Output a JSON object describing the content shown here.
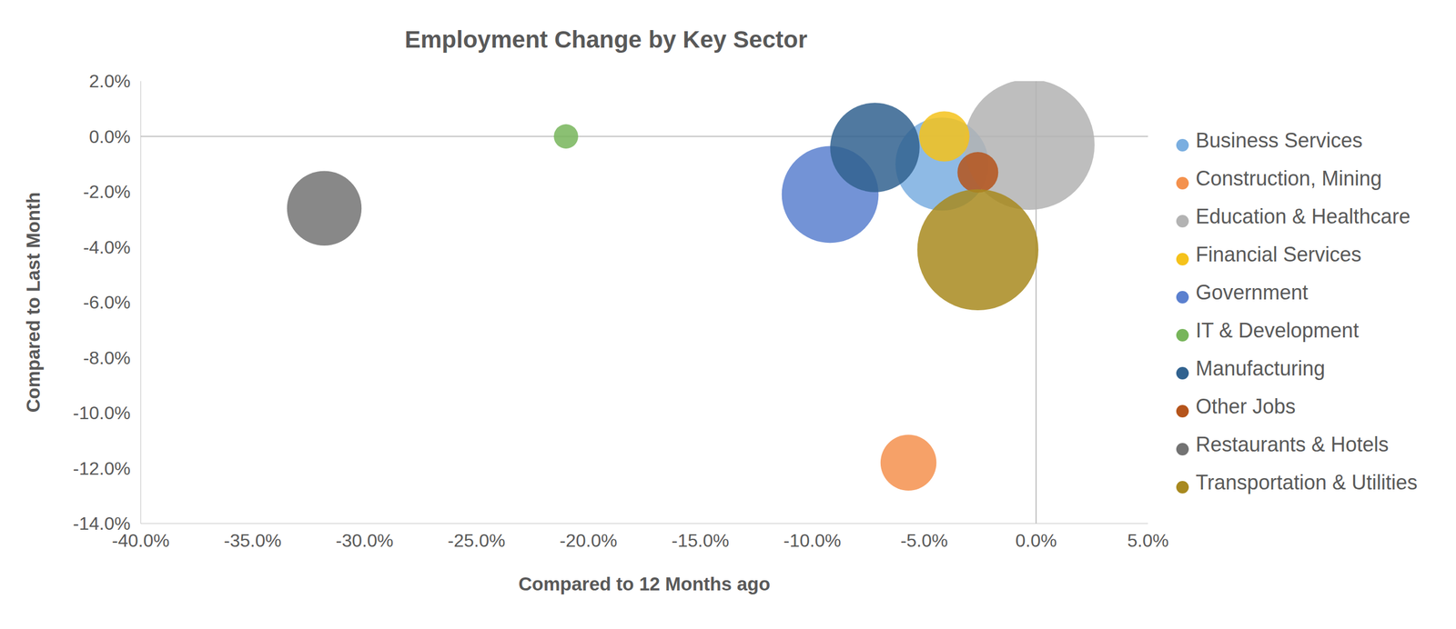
{
  "chart_data": {
    "type": "scatter",
    "title": "Employment Change by Key Sector",
    "x_label": "Compared to 12 Months ago",
    "y_label": "Compared to Last Month",
    "xlim": [
      -40,
      5
    ],
    "xticks": [
      {
        "value": -40,
        "label": "-40.0%"
      },
      {
        "value": -35,
        "label": "-35.0%"
      },
      {
        "value": -30,
        "label": "-30.0%"
      },
      {
        "value": -25,
        "label": "-25.0%"
      },
      {
        "value": -20,
        "label": "-20.0%"
      },
      {
        "value": -15,
        "label": "-15.0%"
      },
      {
        "value": -10,
        "label": "-10.0%"
      },
      {
        "value": -5,
        "label": "-5.0%"
      },
      {
        "value": 0,
        "label": "0.0%"
      },
      {
        "value": 5,
        "label": "5.0%"
      }
    ],
    "ylim": [
      -14,
      2
    ],
    "yticks": [
      {
        "value": -14,
        "label": "-14.0%"
      },
      {
        "value": -12,
        "label": "-12.0%"
      },
      {
        "value": -10,
        "label": "-10.0%"
      },
      {
        "value": -8,
        "label": "-8.0%"
      },
      {
        "value": -6,
        "label": "-6.0%"
      },
      {
        "value": -4,
        "label": "-4.0%"
      },
      {
        "value": -2,
        "label": "-2.0%"
      },
      {
        "value": 0,
        "label": "0.0%"
      },
      {
        "value": 2,
        "label": "2.0%"
      }
    ],
    "grid": false,
    "legend": "right",
    "marker": "circle",
    "series": [
      {
        "name": "Business Services",
        "color": "#7aaee0",
        "x": -4.2,
        "y": -1.0,
        "size": 2500
      },
      {
        "name": "Construction, Mining",
        "color": "#f4914d",
        "x": -5.7,
        "y": -11.8,
        "size": 900
      },
      {
        "name": "Education & Healthcare",
        "color": "#b3b3b3",
        "x": -0.3,
        "y": -0.3,
        "size": 4900
      },
      {
        "name": "Financial Services",
        "color": "#f5c21b",
        "x": -4.1,
        "y": 0.0,
        "size": 730
      },
      {
        "name": "Government",
        "color": "#5b80cf",
        "x": -9.2,
        "y": -2.1,
        "size": 2700
      },
      {
        "name": "IT & Development",
        "color": "#77b55a",
        "x": -21.0,
        "y": 0.0,
        "size": 170
      },
      {
        "name": "Manufacturing",
        "color": "#31628f",
        "x": -7.2,
        "y": -0.4,
        "size": 2300
      },
      {
        "name": "Other Jobs",
        "color": "#b5541b",
        "x": -2.6,
        "y": -1.3,
        "size": 480
      },
      {
        "name": "Restaurants & Hotels",
        "color": "#737373",
        "x": -31.8,
        "y": -2.6,
        "size": 1600
      },
      {
        "name": "Transportation & Utilities",
        "color": "#a8891f",
        "x": -2.6,
        "y": -4.1,
        "size": 4225
      }
    ]
  }
}
